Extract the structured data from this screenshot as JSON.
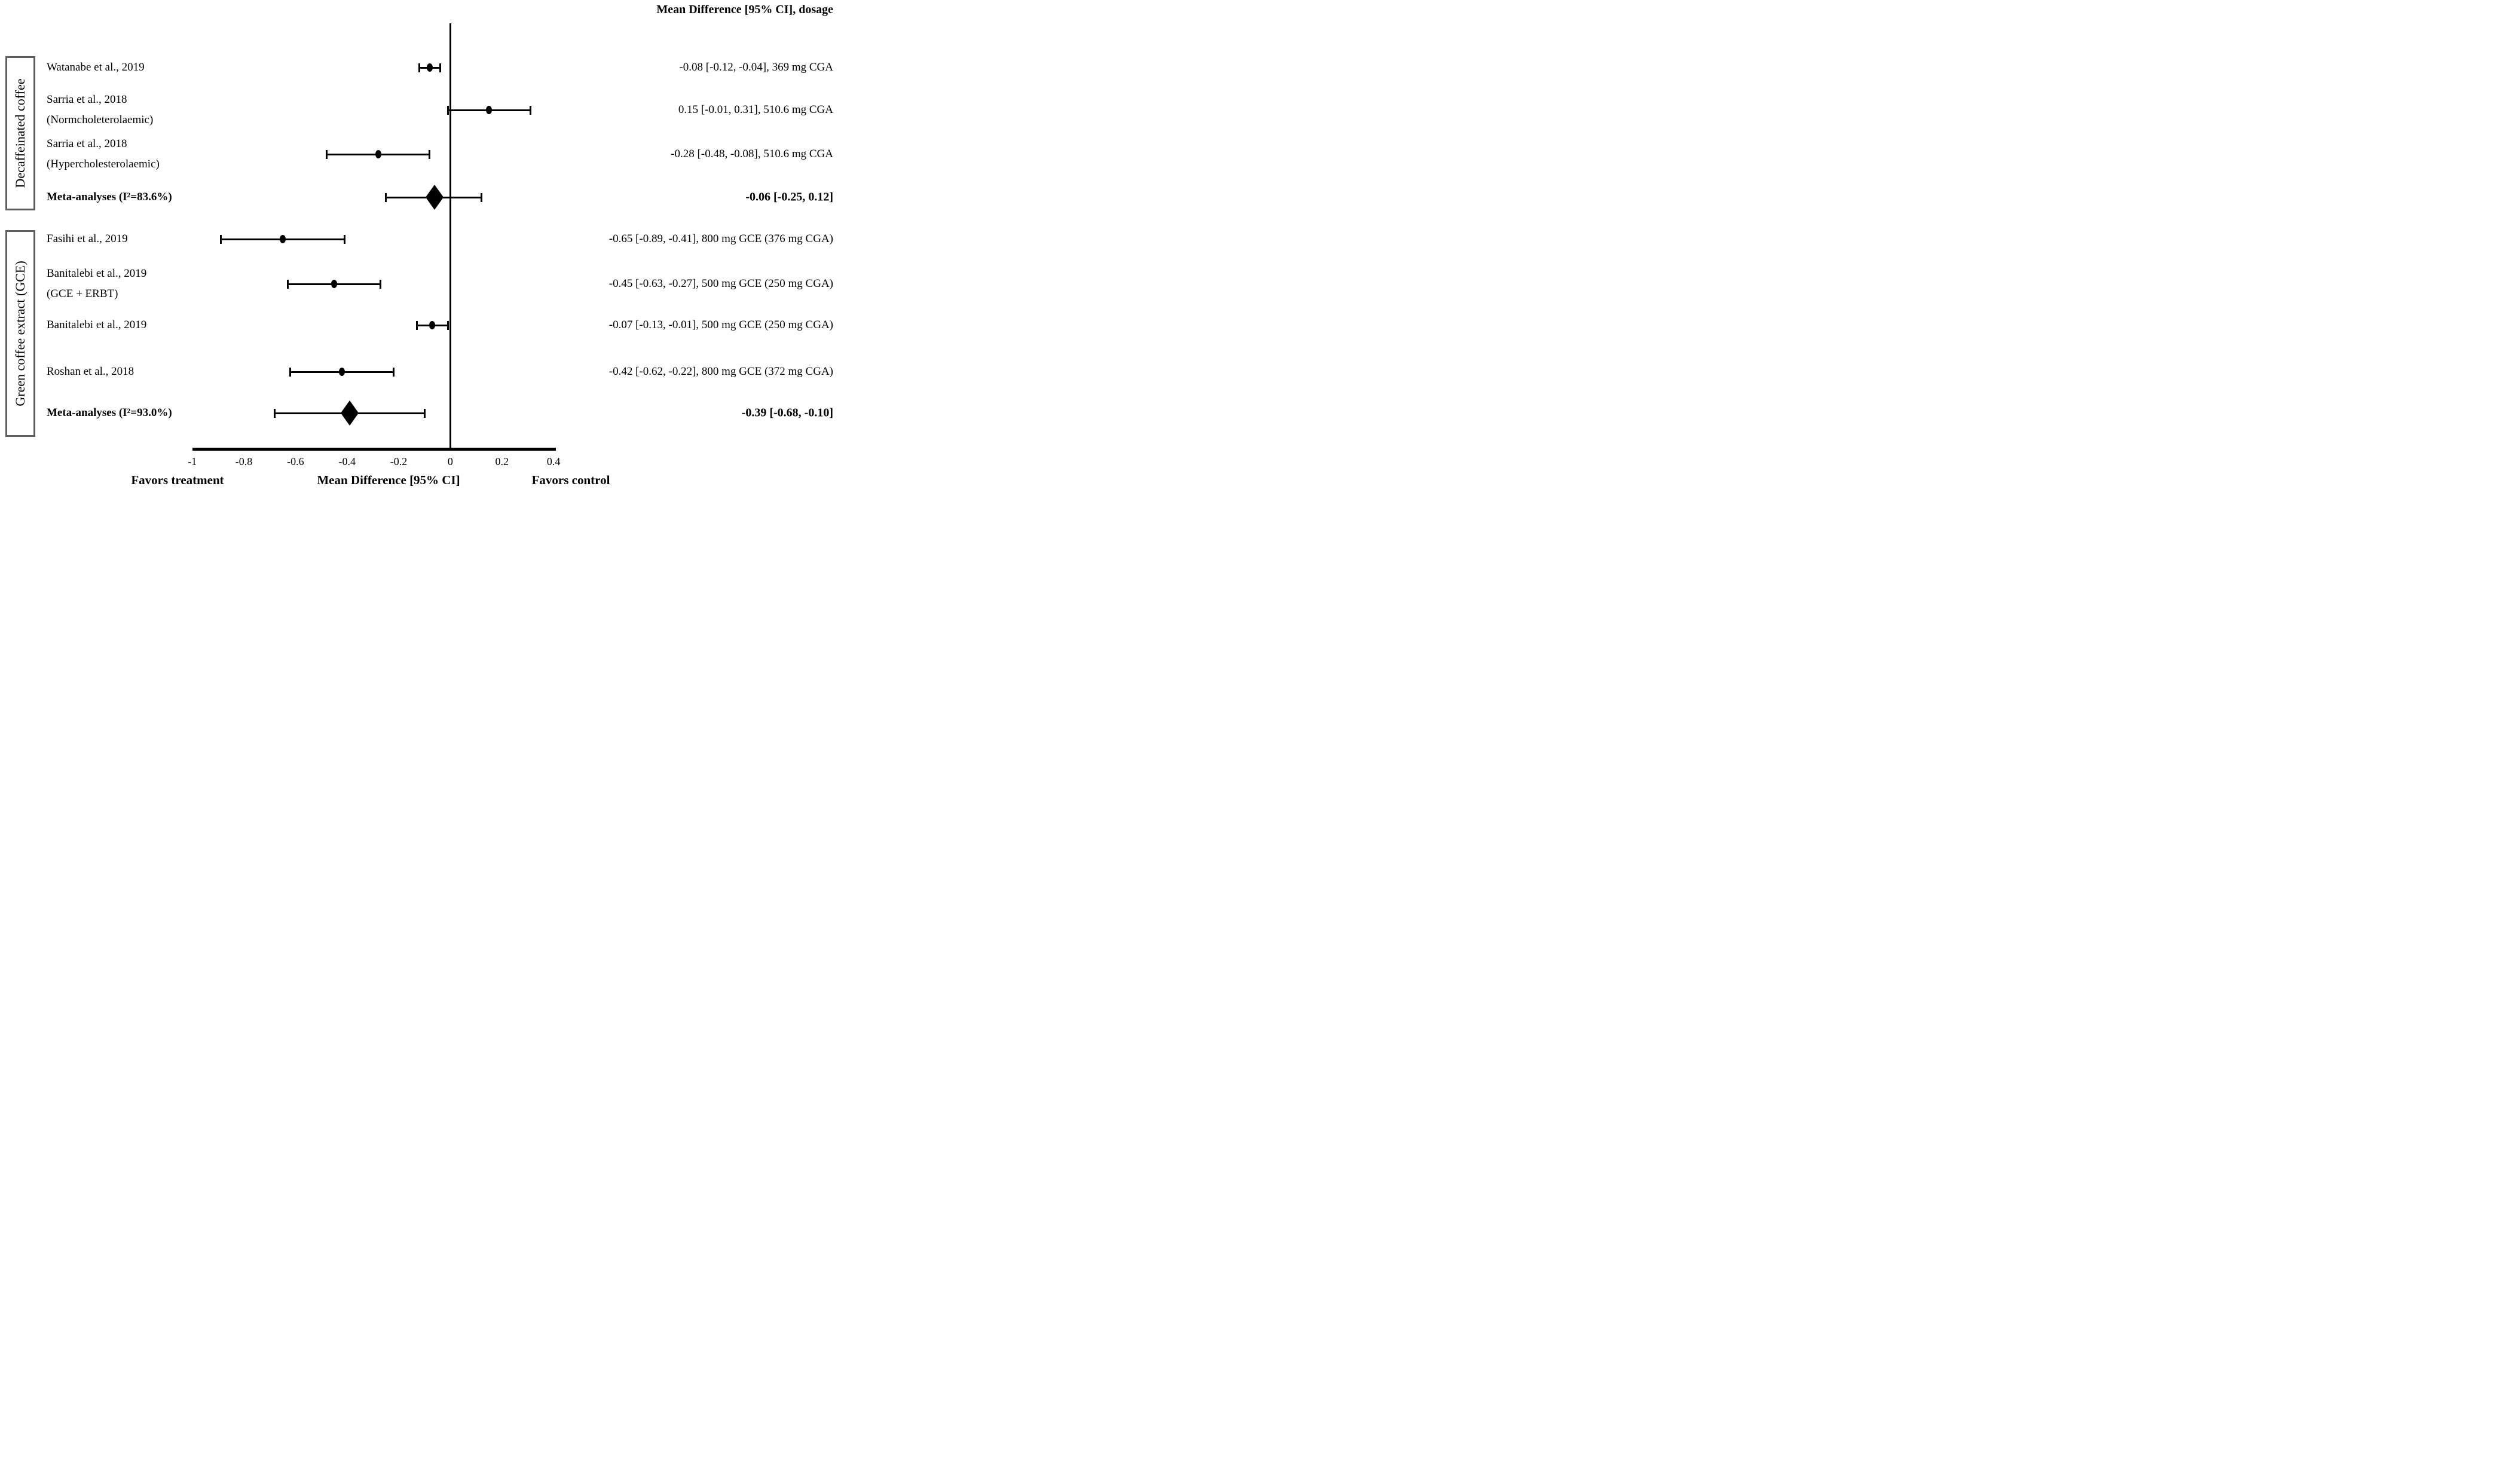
{
  "header": {
    "title": "Mean Difference [95% CI], dosage"
  },
  "groups": [
    {
      "label": "Decaffeinated coffee"
    },
    {
      "label": "Green coffee extract (GCE)"
    }
  ],
  "rows": [
    {
      "label_lines": [
        "Watanabe et al., 2019"
      ],
      "bold": false,
      "marker": "ellipse",
      "estimate": -0.08,
      "ci": [
        -0.12,
        -0.04
      ],
      "value_text": "-0.08 [-0.12, -0.04], 369 mg CGA"
    },
    {
      "label_lines": [
        "Sarria et al., 2018",
        "(Normcholeterolaemic)"
      ],
      "bold": false,
      "marker": "ellipse",
      "estimate": 0.15,
      "ci": [
        -0.01,
        0.31
      ],
      "value_text": "0.15 [-0.01, 0.31], 510.6 mg CGA"
    },
    {
      "label_lines": [
        "Sarria et al., 2018",
        "(Hypercholesterolaemic)"
      ],
      "bold": false,
      "marker": "ellipse",
      "estimate": -0.28,
      "ci": [
        -0.48,
        -0.08
      ],
      "value_text": "-0.28 [-0.48, -0.08], 510.6 mg CGA"
    },
    {
      "label_lines": [
        "Meta-analyses (I²=83.6%)"
      ],
      "bold": true,
      "marker": "diamond",
      "estimate": -0.06,
      "ci": [
        -0.25,
        0.12
      ],
      "value_text": "-0.06 [-0.25, 0.12]"
    },
    {
      "label_lines": [
        "Fasihi et al., 2019"
      ],
      "bold": false,
      "marker": "ellipse",
      "estimate": -0.65,
      "ci": [
        -0.89,
        -0.41
      ],
      "value_text": "-0.65 [-0.89, -0.41], 800 mg GCE (376 mg CGA)"
    },
    {
      "label_lines": [
        "Banitalebi et al., 2019",
        "(GCE + ERBT)"
      ],
      "bold": false,
      "marker": "ellipse",
      "estimate": -0.45,
      "ci": [
        -0.63,
        -0.27
      ],
      "value_text": "-0.45 [-0.63, -0.27], 500 mg GCE (250 mg CGA)"
    },
    {
      "label_lines": [
        "Banitalebi et al., 2019"
      ],
      "bold": false,
      "marker": "ellipse",
      "estimate": -0.07,
      "ci": [
        -0.13,
        -0.01
      ],
      "value_text": "-0.07 [-0.13, -0.01], 500 mg GCE (250 mg CGA)"
    },
    {
      "label_lines": [
        "Roshan et al., 2018"
      ],
      "bold": false,
      "marker": "ellipse",
      "estimate": -0.42,
      "ci": [
        -0.62,
        -0.22
      ],
      "value_text": "-0.42 [-0.62, -0.22], 800 mg GCE (372 mg CGA)"
    },
    {
      "label_lines": [
        "Meta-analyses (I²=93.0%)"
      ],
      "bold": true,
      "marker": "diamond",
      "estimate": -0.39,
      "ci": [
        -0.68,
        -0.1
      ],
      "value_text": "-0.39 [-0.68, -0.10]"
    }
  ],
  "axis": {
    "ticks": [
      "-1",
      "-0.8",
      "-0.6",
      "-0.4",
      "-0.2",
      "0",
      "0.2",
      "0.4"
    ],
    "tick_values": [
      -1,
      -0.8,
      -0.6,
      -0.4,
      -0.2,
      0,
      0.2,
      0.4
    ],
    "range": [
      -1,
      0.4
    ],
    "left_label": "Favors treatment",
    "xlabel": "Mean Difference [95% CI]",
    "right_label": "Favors control"
  },
  "chart_data": {
    "type": "scatter",
    "subtype": "forest-plot",
    "title": "",
    "xlabel": "Mean Difference [95% CI]",
    "xlim": [
      -1,
      0.4
    ],
    "x_ticks": [
      -1,
      -0.8,
      -0.6,
      -0.4,
      -0.2,
      0,
      0.2,
      0.4
    ],
    "favors_left": "Favors treatment",
    "favors_right": "Favors control",
    "value_column_header": "Mean Difference [95% CI], dosage",
    "reference_line_x": 0,
    "groups": [
      {
        "name": "Decaffeinated coffee",
        "studies": [
          {
            "study": "Watanabe et al., 2019",
            "mean_difference": -0.08,
            "ci95": [
              -0.12,
              -0.04
            ],
            "dosage": "369 mg CGA"
          },
          {
            "study": "Sarria et al., 2018 (Normcholeterolaemic)",
            "mean_difference": 0.15,
            "ci95": [
              -0.01,
              0.31
            ],
            "dosage": "510.6 mg CGA"
          },
          {
            "study": "Sarria et al., 2018 (Hypercholesterolaemic)",
            "mean_difference": -0.28,
            "ci95": [
              -0.48,
              -0.08
            ],
            "dosage": "510.6 mg CGA"
          }
        ],
        "meta": {
          "label": "Meta-analyses (I²=83.6%)",
          "i_squared": "83.6%",
          "mean_difference": -0.06,
          "ci95": [
            -0.25,
            0.12
          ]
        }
      },
      {
        "name": "Green coffee extract (GCE)",
        "studies": [
          {
            "study": "Fasihi et al., 2019",
            "mean_difference": -0.65,
            "ci95": [
              -0.89,
              -0.41
            ],
            "dosage": "800 mg GCE (376 mg CGA)"
          },
          {
            "study": "Banitalebi et al., 2019 (GCE + ERBT)",
            "mean_difference": -0.45,
            "ci95": [
              -0.63,
              -0.27
            ],
            "dosage": "500 mg GCE (250 mg CGA)"
          },
          {
            "study": "Banitalebi et al., 2019",
            "mean_difference": -0.07,
            "ci95": [
              -0.13,
              -0.01
            ],
            "dosage": "500 mg GCE (250 mg CGA)"
          },
          {
            "study": "Roshan et al., 2018",
            "mean_difference": -0.42,
            "ci95": [
              -0.62,
              -0.22
            ],
            "dosage": "800 mg GCE (372 mg CGA)"
          }
        ],
        "meta": {
          "label": "Meta-analyses (I²=93.0%)",
          "i_squared": "93.0%",
          "mean_difference": -0.39,
          "ci95": [
            -0.68,
            -0.1
          ]
        }
      }
    ]
  }
}
